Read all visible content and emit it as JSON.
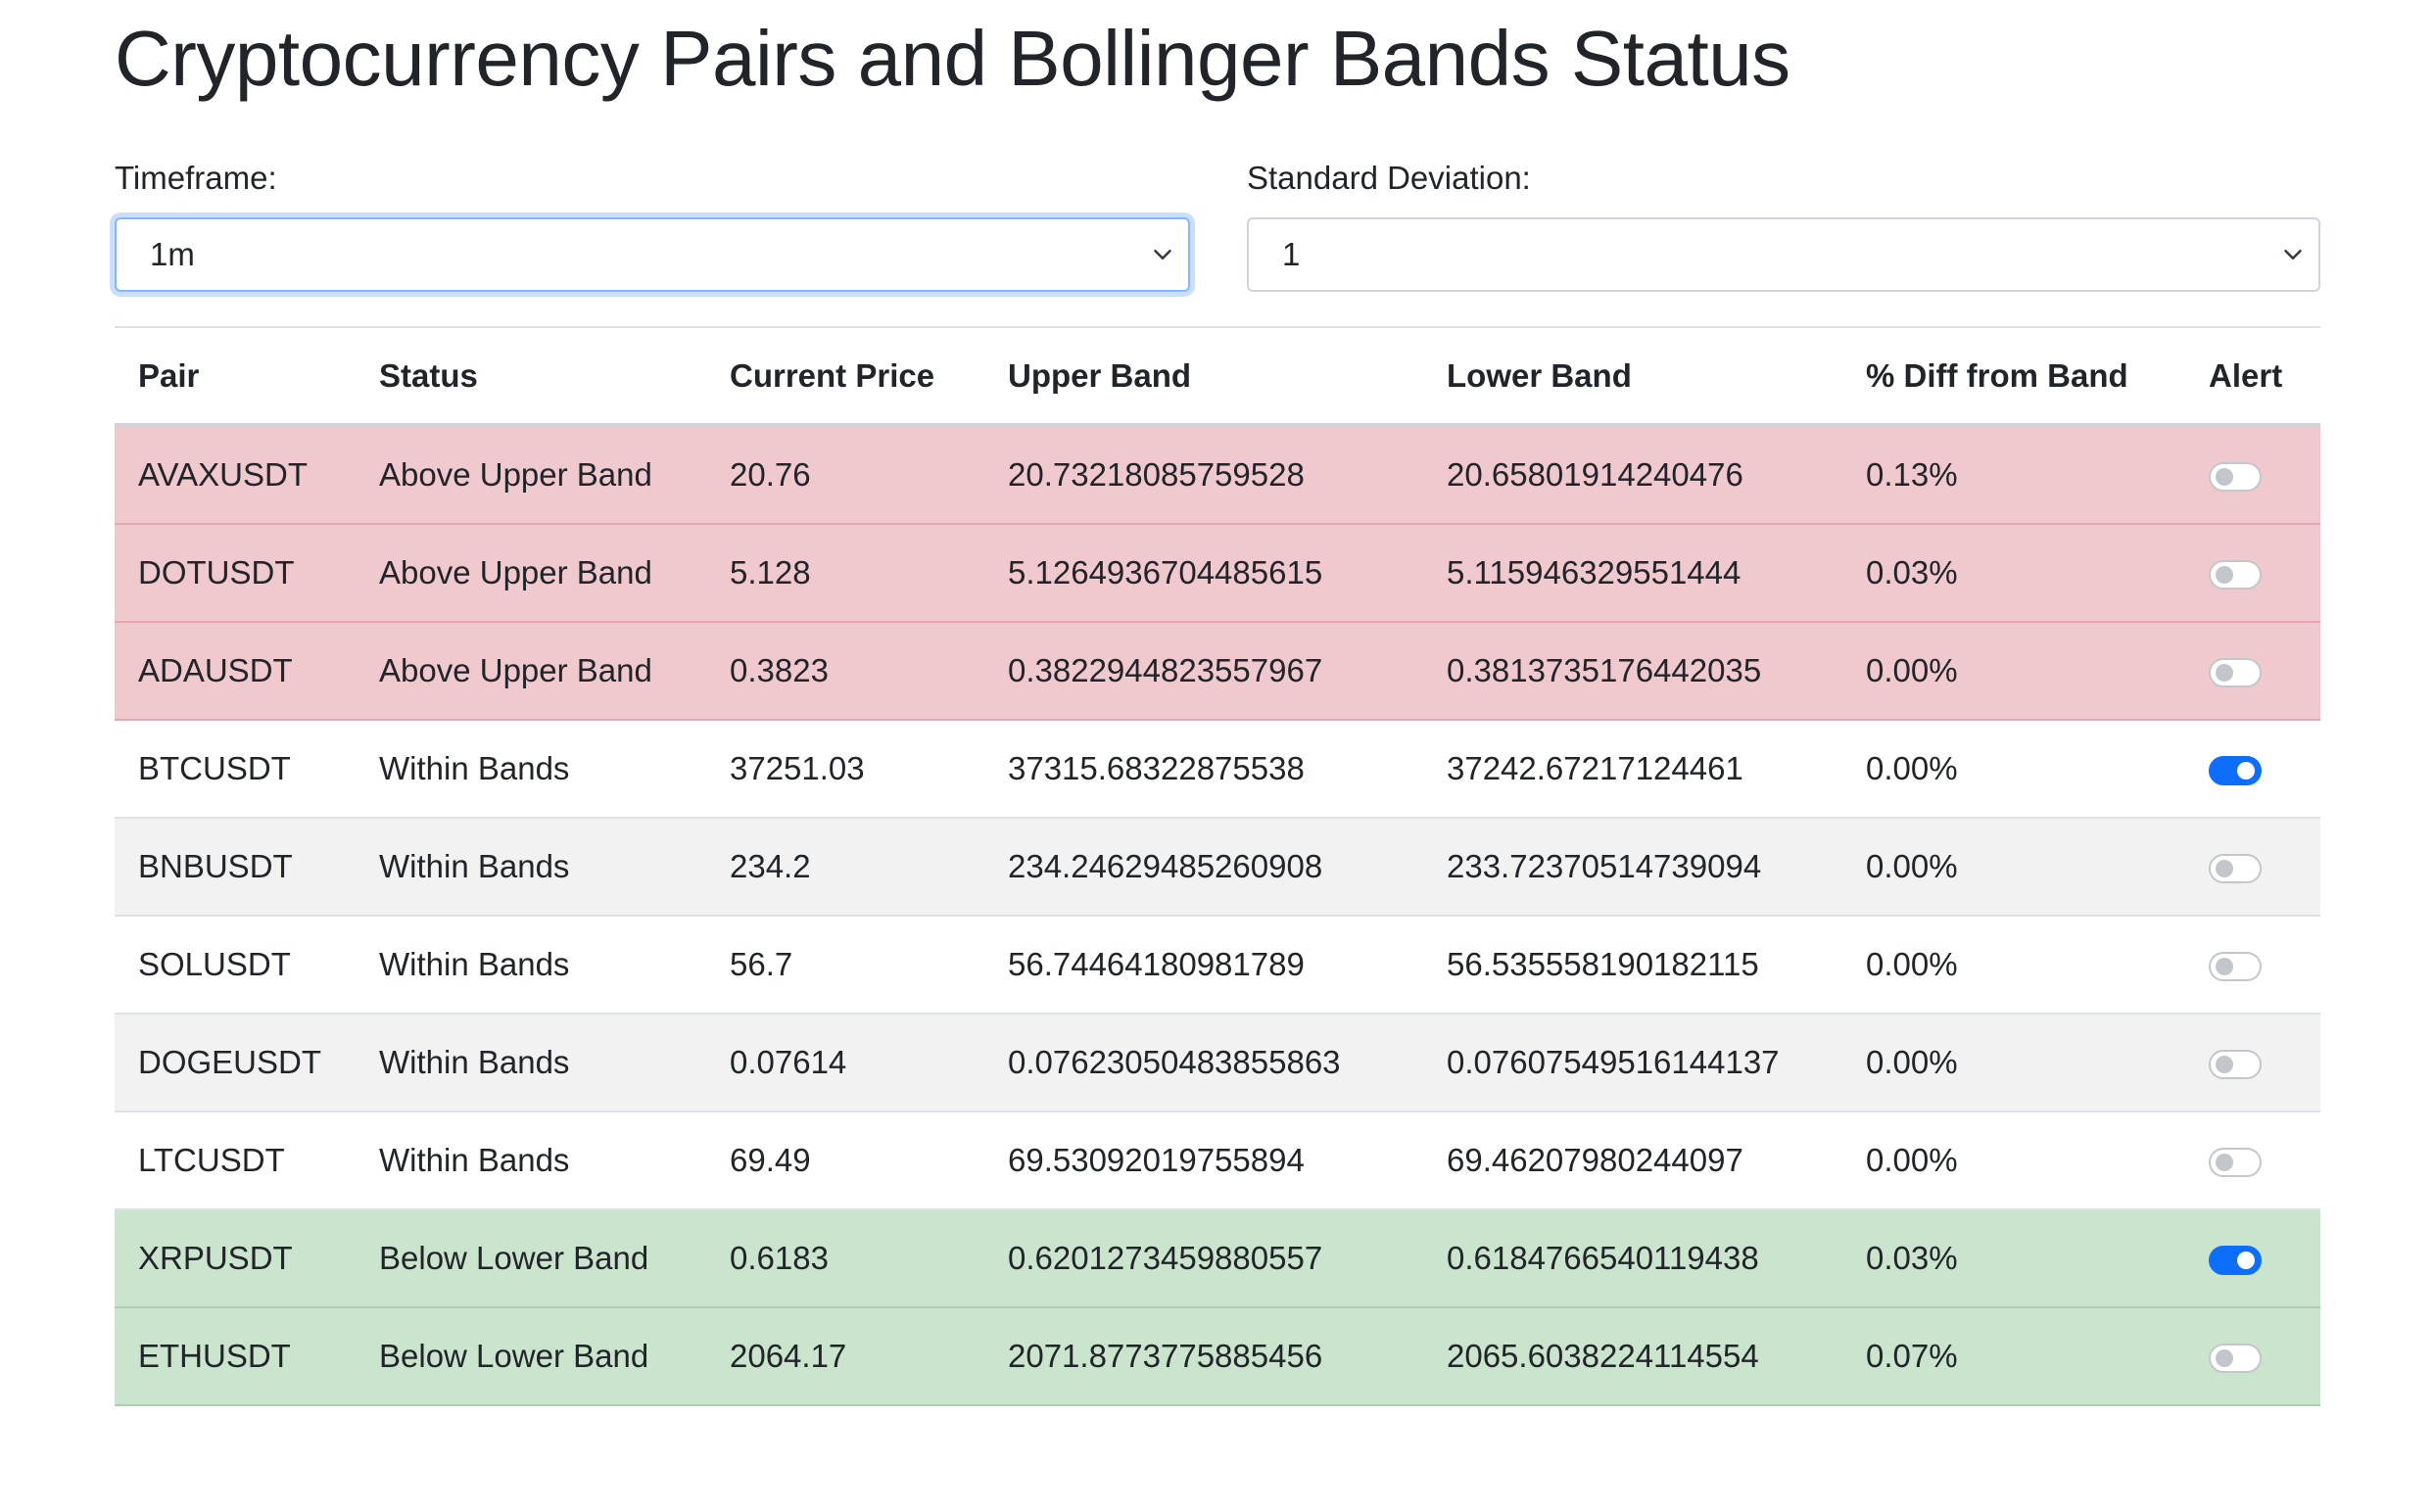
{
  "page": {
    "title": "Cryptocurrency Pairs and Bollinger Bands Status"
  },
  "controls": {
    "timeframe": {
      "label": "Timeframe:",
      "value": "1m"
    },
    "std_dev": {
      "label": "Standard Deviation:",
      "value": "1"
    }
  },
  "colors": {
    "above": "#f0c9ce",
    "below": "#cae4cd",
    "toggle_on": "#0d6efd"
  },
  "table": {
    "headers": [
      "Pair",
      "Status",
      "Current Price",
      "Upper Band",
      "Lower Band",
      "% Diff from Band",
      "Alert"
    ],
    "rows": [
      {
        "pair": "AVAXUSDT",
        "status": "Above Upper Band",
        "price": "20.76",
        "upper": "20.73218085759528",
        "lower": "20.65801914240476",
        "diff": "0.13%",
        "alert": false
      },
      {
        "pair": "DOTUSDT",
        "status": "Above Upper Band",
        "price": "5.128",
        "upper": "5.1264936704485615",
        "lower": "5.115946329551444",
        "diff": "0.03%",
        "alert": false
      },
      {
        "pair": "ADAUSDT",
        "status": "Above Upper Band",
        "price": "0.3823",
        "upper": "0.3822944823557967",
        "lower": "0.3813735176442035",
        "diff": "0.00%",
        "alert": false
      },
      {
        "pair": "BTCUSDT",
        "status": "Within Bands",
        "price": "37251.03",
        "upper": "37315.68322875538",
        "lower": "37242.67217124461",
        "diff": "0.00%",
        "alert": true
      },
      {
        "pair": "BNBUSDT",
        "status": "Within Bands",
        "price": "234.2",
        "upper": "234.24629485260908",
        "lower": "233.72370514739094",
        "diff": "0.00%",
        "alert": false
      },
      {
        "pair": "SOLUSDT",
        "status": "Within Bands",
        "price": "56.7",
        "upper": "56.74464180981789",
        "lower": "56.535558190182115",
        "diff": "0.00%",
        "alert": false
      },
      {
        "pair": "DOGEUSDT",
        "status": "Within Bands",
        "price": "0.07614",
        "upper": "0.07623050483855863",
        "lower": "0.07607549516144137",
        "diff": "0.00%",
        "alert": false
      },
      {
        "pair": "LTCUSDT",
        "status": "Within Bands",
        "price": "69.49",
        "upper": "69.53092019755894",
        "lower": "69.46207980244097",
        "diff": "0.00%",
        "alert": false
      },
      {
        "pair": "XRPUSDT",
        "status": "Below Lower Band",
        "price": "0.6183",
        "upper": "0.6201273459880557",
        "lower": "0.6184766540119438",
        "diff": "0.03%",
        "alert": true
      },
      {
        "pair": "ETHUSDT",
        "status": "Below Lower Band",
        "price": "2064.17",
        "upper": "2071.8773775885456",
        "lower": "2065.6038224114554",
        "diff": "0.07%",
        "alert": false
      }
    ]
  }
}
